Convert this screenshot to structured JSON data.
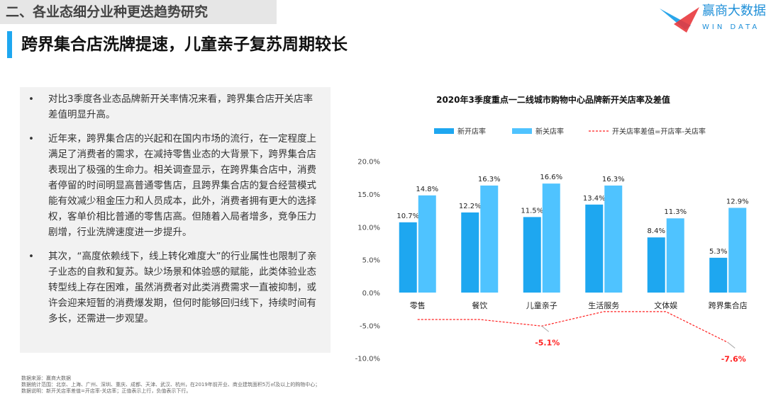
{
  "section_title": "二、各业态细分业种更迭趋势研究",
  "page_title": "跨界集合店洗牌提速，儿童亲子复苏周期较长",
  "logo": {
    "cn": "赢商大数据",
    "en": "WIN DATA"
  },
  "bullets": [
    "对比3季度各业态品牌新开关率情况来看，跨界集合店开关店率差值明显升高。",
    "近年来，跨界集合店的兴起和在国内市场的流行，在一定程度上满足了消费者的需求，在减持零售业态的大背景下，跨界集合店表现出了极强的生命力。相关调查显示，在跨界集合店中，消费者停留的时间明显高普通零售店，且跨界集合店的复合经营模式能有效减少租金压力和人员成本，此外，消费者拥有更大的选择权，客单价相比普通的零售店高。但随着入局者增多，竞争压力剧增，行业洗牌速度进一步提升。",
    "其次，“高度依赖线下，线上转化难度大”的行业属性也限制了亲子业态的自救和复苏。缺少场景和体验感的赋能，此类体验业态转型线上存在困难，虽然消费者对此类消费需求一直被抑制，或许会迎来短暂的消费爆发期，但何时能够回归线下，持续时间有多长，还需进一步观望。"
  ],
  "notes": [
    "数据来源：赢商大数据",
    "数据统计范围：北京、上海、广州、深圳、重庆、成都、天津、武汉、杭州，在2019年前开业、商业建筑面积5万㎡及以上的购物中心；",
    "数据说明：新开关店率差值=开店率-关店率；正值表示上行，负值表示下行。"
  ],
  "chart_data": {
    "type": "bar",
    "title": "2020年3季度重点一二线城市购物中心品牌新开关店率及差值",
    "categories": [
      "零售",
      "餐饮",
      "儿童亲子",
      "生活服务",
      "文体娱",
      "跨界集合店"
    ],
    "series": [
      {
        "name": "新开店率",
        "type": "bar",
        "color": "#1ea7f0",
        "values": [
          10.7,
          12.2,
          11.5,
          13.4,
          8.4,
          5.3
        ],
        "labels": [
          "10.7%",
          "12.2%",
          "11.5%",
          "13.4%",
          "8.4%",
          "5.3%"
        ]
      },
      {
        "name": "新关店率",
        "type": "bar",
        "color": "#4fc3ff",
        "values": [
          14.8,
          16.3,
          16.6,
          16.3,
          11.3,
          12.9
        ],
        "labels": [
          "14.8%",
          "16.3%",
          "16.6%",
          "16.3%",
          "11.3%",
          "12.9%"
        ]
      },
      {
        "name": "开关店率差值=开店率-关店率",
        "type": "line",
        "style": "dashed",
        "color": "#ff2020",
        "values": [
          -4.1,
          -4.1,
          -5.1,
          -2.9,
          -2.9,
          -7.6
        ],
        "labels": [
          "",
          "",
          "-5.1%",
          "",
          "",
          "-7.6%"
        ]
      }
    ],
    "yticks": [
      "20.0%",
      "15.0%",
      "10.0%",
      "5.0%",
      "0.0%",
      "-5.0%",
      "-10.0%"
    ],
    "ylim": [
      -10,
      20
    ],
    "legend": "top"
  }
}
